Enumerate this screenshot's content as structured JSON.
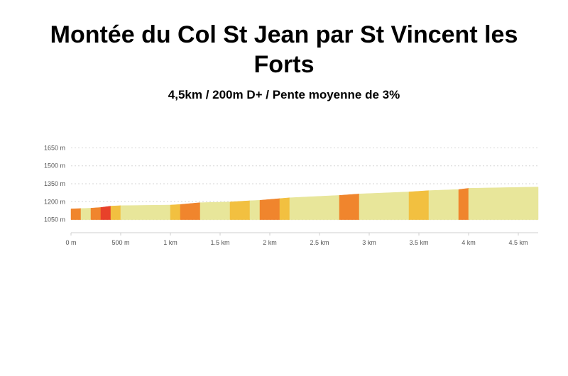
{
  "title": "Montée du Col St Jean par St Vincent les Forts",
  "subtitle": "4,5km / 200m D+ / Pente moyenne de 3%",
  "chart_data": {
    "type": "area",
    "xlabel": "",
    "ylabel": "",
    "xlim": [
      0,
      4.7
    ],
    "ylim": [
      1000,
      1700
    ],
    "grid": true,
    "legend": "none",
    "y_ticks": [
      {
        "value": 1050,
        "label": "1050 m"
      },
      {
        "value": 1200,
        "label": "1200 m"
      },
      {
        "value": 1350,
        "label": "1350 m"
      },
      {
        "value": 1500,
        "label": "1500 m"
      },
      {
        "value": 1650,
        "label": "1650 m"
      }
    ],
    "x_ticks": [
      {
        "value": 0,
        "label": "0 m"
      },
      {
        "value": 0.5,
        "label": "500 m"
      },
      {
        "value": 1,
        "label": "1 km"
      },
      {
        "value": 1.5,
        "label": "1.5 km"
      },
      {
        "value": 2,
        "label": "2 km"
      },
      {
        "value": 2.5,
        "label": "2.5 km"
      },
      {
        "value": 3,
        "label": "3 km"
      },
      {
        "value": 3.5,
        "label": "3.5 km"
      },
      {
        "value": 4,
        "label": "4 km"
      },
      {
        "value": 4.5,
        "label": "4.5 km"
      }
    ],
    "segments": [
      {
        "x0": 0.0,
        "x1": 0.1,
        "y0": 1140,
        "y1": 1143,
        "color": "#F0852D"
      },
      {
        "x0": 0.1,
        "x1": 0.2,
        "y0": 1143,
        "y1": 1146,
        "color": "#E8E69A"
      },
      {
        "x0": 0.2,
        "x1": 0.3,
        "y0": 1146,
        "y1": 1152,
        "color": "#F0852D"
      },
      {
        "x0": 0.3,
        "x1": 0.4,
        "y0": 1152,
        "y1": 1163,
        "color": "#E8412A"
      },
      {
        "x0": 0.4,
        "x1": 0.5,
        "y0": 1163,
        "y1": 1167,
        "color": "#F2C040"
      },
      {
        "x0": 0.5,
        "x1": 1.0,
        "y0": 1167,
        "y1": 1172,
        "color": "#E8E69A"
      },
      {
        "x0": 1.0,
        "x1": 1.1,
        "y0": 1172,
        "y1": 1177,
        "color": "#F2C040"
      },
      {
        "x0": 1.1,
        "x1": 1.3,
        "y0": 1177,
        "y1": 1192,
        "color": "#F0852D"
      },
      {
        "x0": 1.3,
        "x1": 1.6,
        "y0": 1192,
        "y1": 1198,
        "color": "#E8E69A"
      },
      {
        "x0": 1.6,
        "x1": 1.8,
        "y0": 1198,
        "y1": 1208,
        "color": "#F2C040"
      },
      {
        "x0": 1.8,
        "x1": 1.9,
        "y0": 1208,
        "y1": 1212,
        "color": "#E8E69A"
      },
      {
        "x0": 1.9,
        "x1": 2.1,
        "y0": 1212,
        "y1": 1226,
        "color": "#F0852D"
      },
      {
        "x0": 2.1,
        "x1": 2.2,
        "y0": 1226,
        "y1": 1233,
        "color": "#F2C040"
      },
      {
        "x0": 2.2,
        "x1": 2.7,
        "y0": 1233,
        "y1": 1253,
        "color": "#E8E69A"
      },
      {
        "x0": 2.7,
        "x1": 2.9,
        "y0": 1253,
        "y1": 1265,
        "color": "#F0852D"
      },
      {
        "x0": 2.9,
        "x1": 3.4,
        "y0": 1265,
        "y1": 1282,
        "color": "#E8E69A"
      },
      {
        "x0": 3.4,
        "x1": 3.6,
        "y0": 1282,
        "y1": 1293,
        "color": "#F2C040"
      },
      {
        "x0": 3.6,
        "x1": 3.9,
        "y0": 1293,
        "y1": 1302,
        "color": "#E8E69A"
      },
      {
        "x0": 3.9,
        "x1": 4.0,
        "y0": 1302,
        "y1": 1312,
        "color": "#F0852D"
      },
      {
        "x0": 4.0,
        "x1": 4.7,
        "y0": 1312,
        "y1": 1323,
        "color": "#E8E69A"
      }
    ]
  }
}
